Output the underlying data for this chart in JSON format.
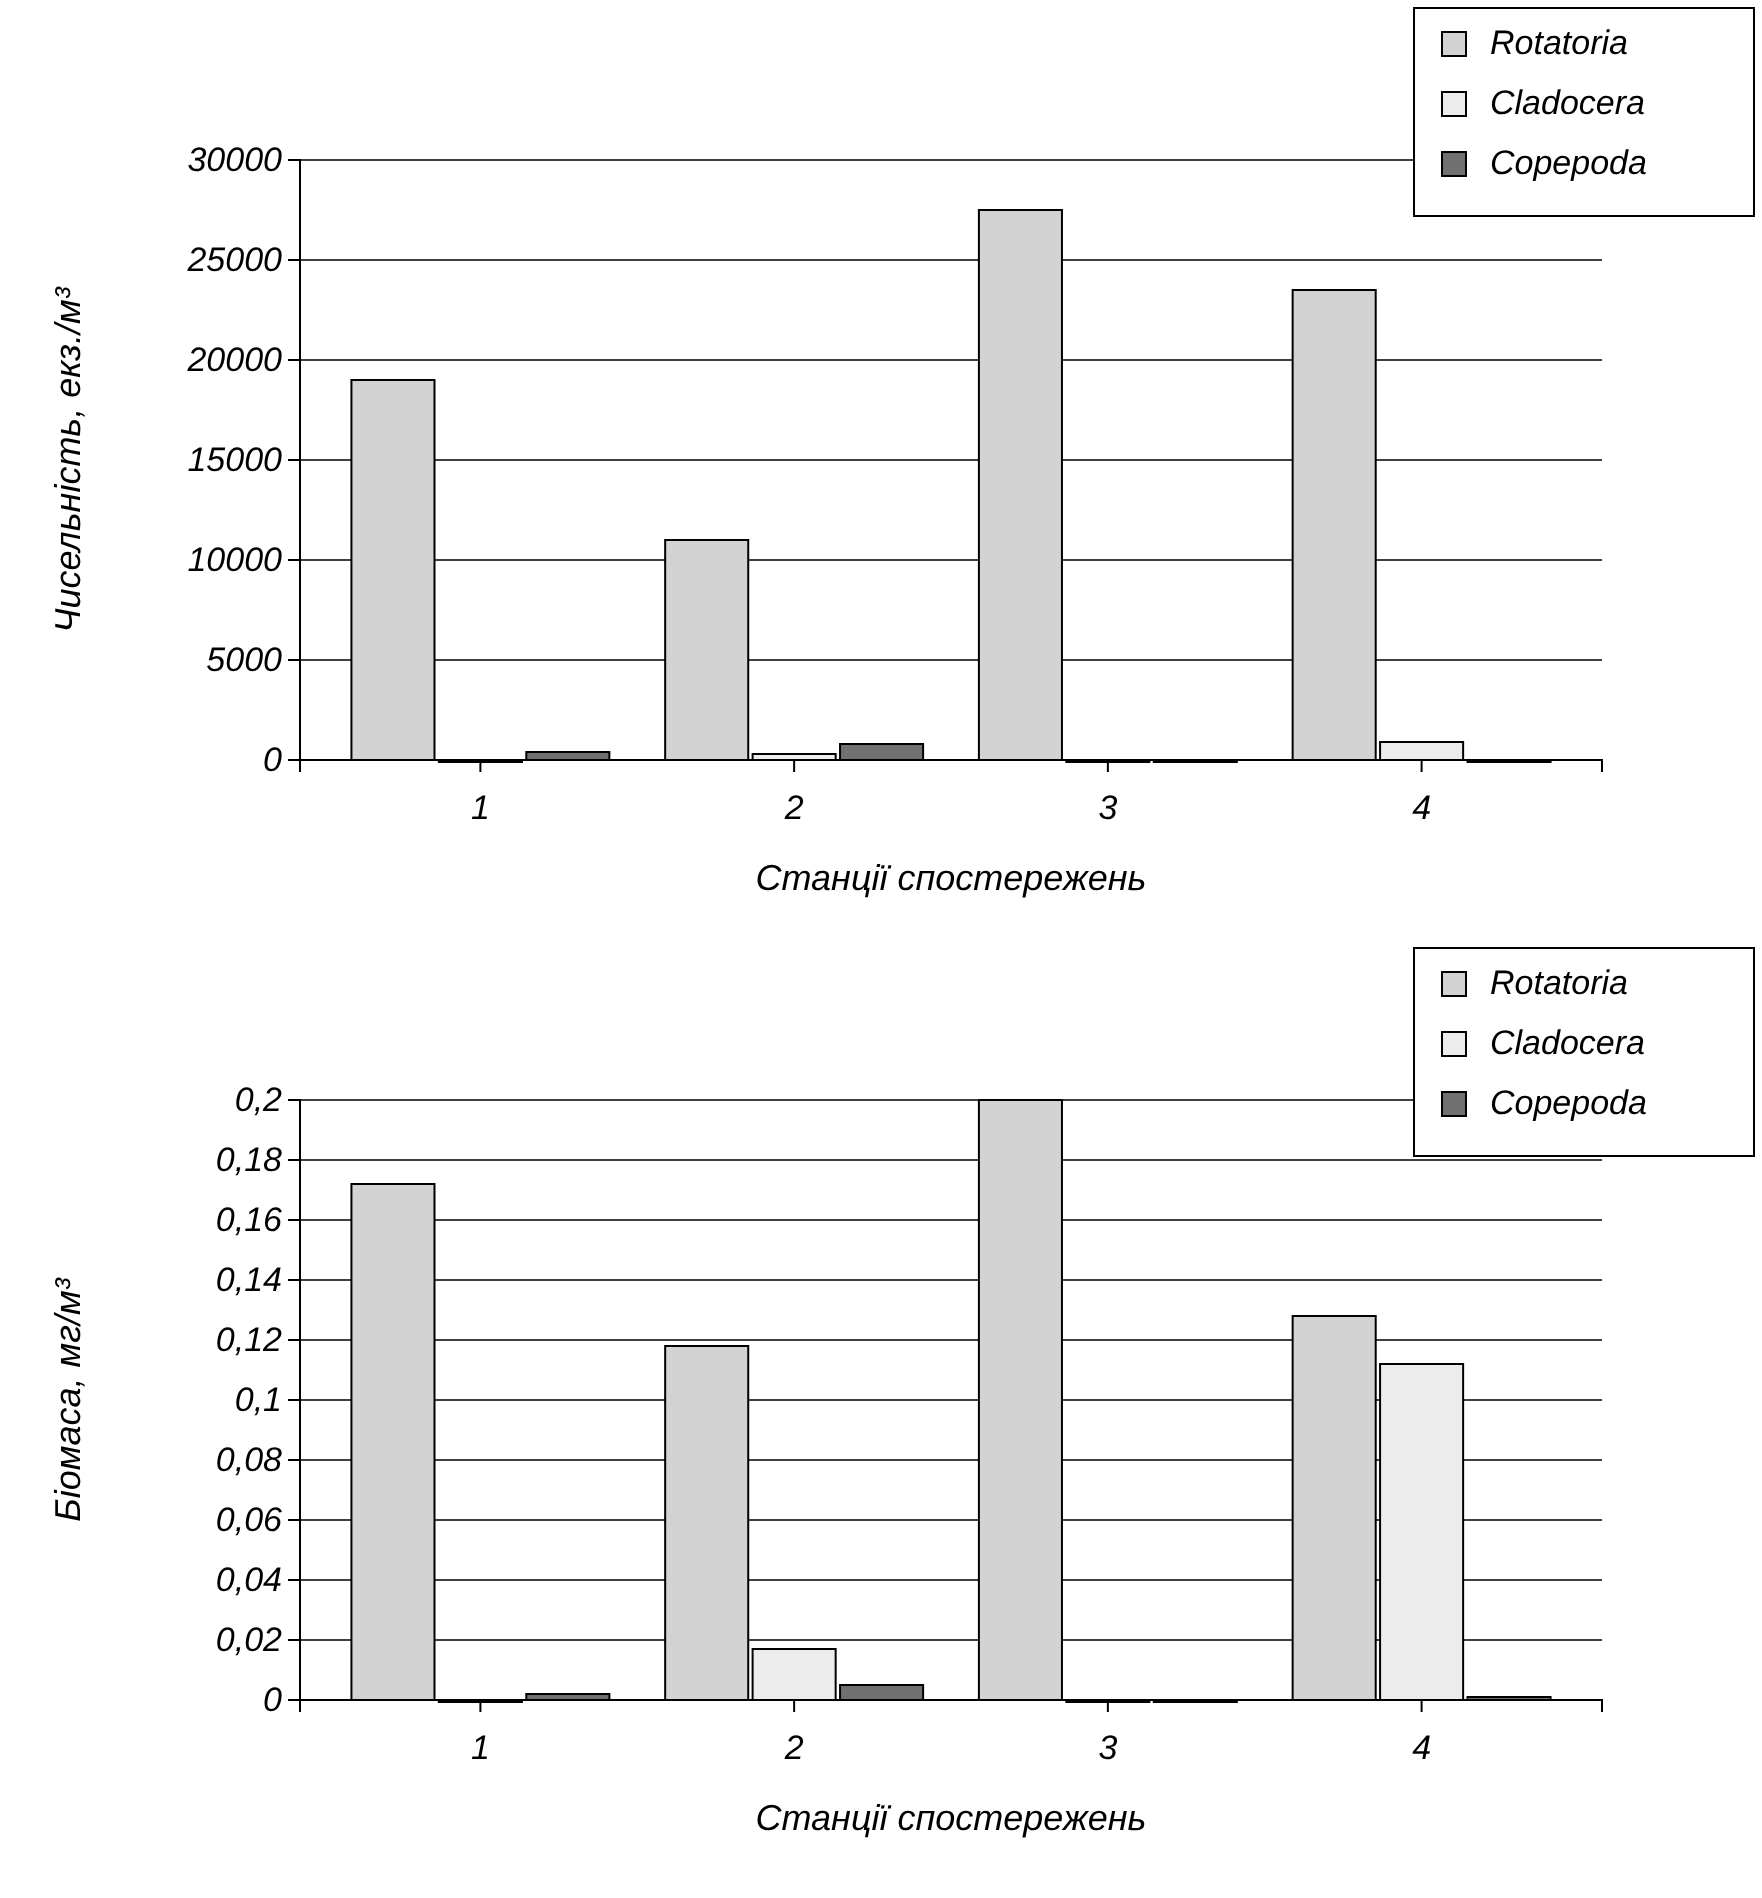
{
  "chart_data": [
    {
      "type": "bar",
      "xlabel": "Станції спостережень",
      "ylabel": "Чисельність, екз./м³",
      "categories": [
        "1",
        "2",
        "3",
        "4"
      ],
      "series": [
        {
          "name": "Rotatoria",
          "color": "#d3d3d3",
          "values": [
            19000,
            11000,
            27500,
            23500
          ]
        },
        {
          "name": "Cladocera",
          "color": "#ececec",
          "values": [
            0,
            300,
            0,
            900
          ]
        },
        {
          "name": "Copepoda",
          "color": "#707070",
          "values": [
            400,
            800,
            0,
            0
          ]
        }
      ],
      "ylim": [
        0,
        30000
      ],
      "yticks": [
        0,
        5000,
        10000,
        15000,
        20000,
        25000,
        30000
      ],
      "grid": "y",
      "legend": "top right"
    },
    {
      "type": "bar",
      "xlabel": "Станції спостережень",
      "ylabel": "Біомаса, мг/м³",
      "categories": [
        "1",
        "2",
        "3",
        "4"
      ],
      "series": [
        {
          "name": "Rotatoria",
          "color": "#d3d3d3",
          "values": [
            0.172,
            0.118,
            0.2,
            0.128
          ]
        },
        {
          "name": "Cladocera",
          "color": "#ececec",
          "values": [
            0,
            0.017,
            0,
            0.112
          ]
        },
        {
          "name": "Copepoda",
          "color": "#707070",
          "values": [
            0.002,
            0.005,
            0,
            0.001
          ]
        }
      ],
      "ylim": [
        0,
        0.2
      ],
      "yticks": [
        0,
        {
          "value": 0.02,
          "label": "0,02"
        },
        {
          "value": 0.04,
          "label": "0,04"
        },
        {
          "value": 0.06,
          "label": "0,06"
        },
        {
          "value": 0.08,
          "label": "0,08"
        },
        {
          "value": 0.1,
          "label": "0,1"
        },
        {
          "value": 0.12,
          "label": "0,12"
        },
        {
          "value": 0.14,
          "label": "0,14"
        },
        {
          "value": 0.16,
          "label": "0,16"
        },
        {
          "value": 0.18,
          "label": "0,18"
        },
        {
          "value": 0.2,
          "label": "0,2"
        }
      ],
      "grid": "y",
      "legend": "top right"
    }
  ]
}
